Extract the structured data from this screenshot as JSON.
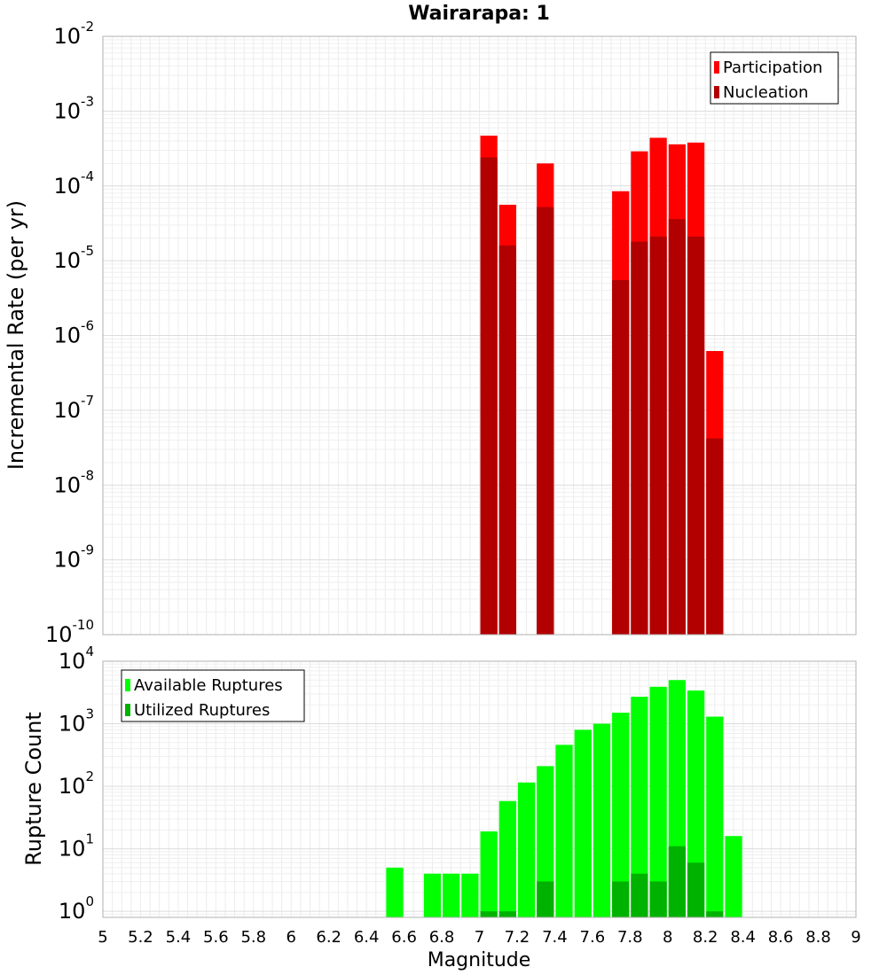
{
  "chart_data": [
    {
      "type": "bar",
      "title": "Wairarapa: 1",
      "ylabel": "Incremental Rate (per yr)",
      "xlabel": "",
      "xlim": [
        5,
        9
      ],
      "ylim": [
        1e-10,
        0.01
      ],
      "yscale": "log",
      "grid": true,
      "legend_position": "top-right",
      "bin_width": 0.1,
      "series": [
        {
          "name": "Participation",
          "color": "#ff0000",
          "x": [
            7.05,
            7.15,
            7.35,
            7.75,
            7.85,
            7.95,
            8.05,
            8.15,
            8.25
          ],
          "values": [
            0.00047,
            5.6e-05,
            0.0002,
            8.5e-05,
            0.00029,
            0.00044,
            0.00036,
            0.00038,
            6.2e-07
          ]
        },
        {
          "name": "Nucleation",
          "color": "#b20000",
          "x": [
            7.05,
            7.15,
            7.35,
            7.75,
            7.85,
            7.95,
            8.05,
            8.15,
            8.25
          ],
          "values": [
            0.00024,
            1.6e-05,
            5.2e-05,
            5.5e-06,
            1.8e-05,
            2.1e-05,
            3.6e-05,
            2.1e-05,
            4.2e-08
          ]
        }
      ]
    },
    {
      "type": "bar",
      "title": "",
      "ylabel": "Rupture Count",
      "xlabel": "Magnitude",
      "xlim": [
        5,
        9
      ],
      "ylim": [
        0.8,
        10000
      ],
      "yscale": "log",
      "grid": true,
      "legend_position": "top-left",
      "bin_width": 0.1,
      "x_ticks": [
        "5",
        "5.2",
        "5.4",
        "5.6",
        "5.8",
        "6",
        "6.2",
        "6.4",
        "6.6",
        "6.8",
        "7",
        "7.2",
        "7.4",
        "7.6",
        "7.8",
        "8",
        "8.2",
        "8.4",
        "8.6",
        "8.8",
        "9"
      ],
      "series": [
        {
          "name": "Available Ruptures",
          "color": "#00ff00",
          "x": [
            6.55,
            6.75,
            6.85,
            6.95,
            7.05,
            7.15,
            7.25,
            7.35,
            7.45,
            7.55,
            7.65,
            7.75,
            7.85,
            7.95,
            8.05,
            8.15,
            8.25,
            8.35
          ],
          "values": [
            5,
            4,
            4,
            4,
            19,
            58,
            115,
            210,
            460,
            800,
            1000,
            1500,
            2700,
            3900,
            5000,
            3400,
            1300,
            16
          ]
        },
        {
          "name": "Utilized Ruptures",
          "color": "#00b200",
          "x": [
            7.05,
            7.15,
            7.35,
            7.75,
            7.85,
            7.95,
            8.05,
            8.15,
            8.25
          ],
          "values": [
            1,
            1,
            3,
            3,
            4,
            3,
            11,
            6,
            1
          ]
        }
      ]
    }
  ]
}
